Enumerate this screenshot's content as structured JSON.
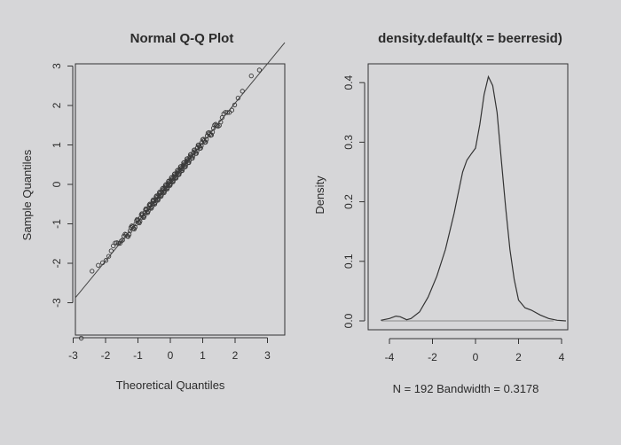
{
  "chart_data": [
    {
      "type": "scatter",
      "title": "Normal Q-Q Plot",
      "xlabel": "Theoretical Quantiles",
      "ylabel": "Sample Quantiles",
      "xlim": [
        -3,
        3
      ],
      "ylim": [
        -3,
        3
      ],
      "x_ticks": [
        "-3",
        "-2",
        "-1",
        "0",
        "1",
        "2",
        "3"
      ],
      "y_ticks": [
        "-3",
        "-2",
        "-1",
        "0",
        "1",
        "2",
        "3"
      ],
      "reference_line": {
        "intercept": 0.06,
        "slope": 1.0
      },
      "points_summary": {
        "n": 192,
        "outliers": [
          {
            "x": -2.75,
            "y": -3.9
          },
          {
            "x": 2.5,
            "y": 2.75
          },
          {
            "x": 2.75,
            "y": 2.9
          }
        ]
      }
    },
    {
      "type": "line",
      "title": "density.default(x = beerresid)",
      "xlabel": "N = 192   Bandwidth = 0.3178",
      "ylabel": "Density",
      "xlim": [
        -4.4,
        4.4
      ],
      "ylim": [
        0,
        0.43
      ],
      "x_ticks": [
        "-4",
        "-2",
        "0",
        "2",
        "4"
      ],
      "y_ticks": [
        "0.0",
        "0.1",
        "0.2",
        "0.3",
        "0.4"
      ],
      "x": [
        -4.4,
        -4.0,
        -3.7,
        -3.5,
        -3.2,
        -3.0,
        -2.6,
        -2.2,
        -1.8,
        -1.4,
        -1.0,
        -0.8,
        -0.6,
        -0.4,
        -0.2,
        0.0,
        0.2,
        0.4,
        0.6,
        0.8,
        1.0,
        1.2,
        1.4,
        1.6,
        1.8,
        2.0,
        2.3,
        2.6,
        3.0,
        3.4,
        3.8,
        4.2
      ],
      "y": [
        0.001,
        0.004,
        0.008,
        0.007,
        0.002,
        0.004,
        0.015,
        0.04,
        0.075,
        0.12,
        0.18,
        0.215,
        0.25,
        0.27,
        0.28,
        0.29,
        0.33,
        0.38,
        0.41,
        0.395,
        0.35,
        0.27,
        0.19,
        0.12,
        0.07,
        0.035,
        0.022,
        0.018,
        0.01,
        0.004,
        0.001,
        0.0
      ]
    }
  ]
}
